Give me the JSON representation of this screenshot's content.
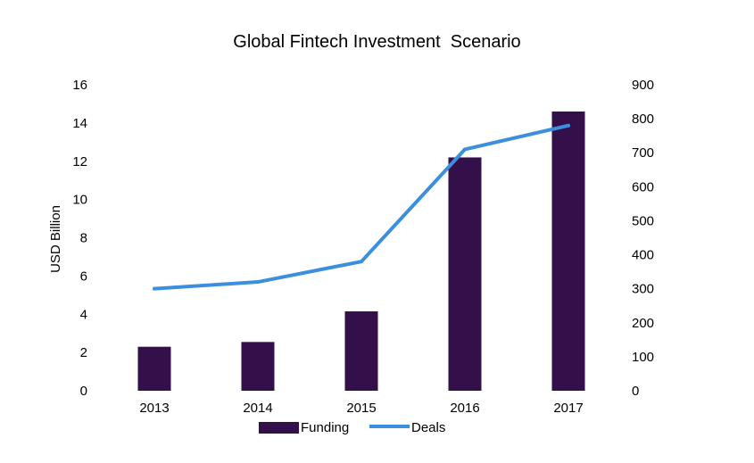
{
  "chart_data": {
    "type": "bar",
    "title": "Global Fintech Investment  Scenario",
    "categories": [
      "2013",
      "2014",
      "2015",
      "2016",
      "2017"
    ],
    "series": [
      {
        "name": "Funding",
        "kind": "bar",
        "axis": "left",
        "color": "#33104a",
        "values": [
          2.3,
          2.55,
          4.15,
          12.2,
          14.6
        ]
      },
      {
        "name": "Deals",
        "kind": "line",
        "axis": "right",
        "color": "#3b8fdc",
        "values": [
          300,
          320,
          380,
          710,
          780
        ]
      }
    ],
    "ylabel": "USD Billion",
    "ylim": [
      0,
      16
    ],
    "yticks": [
      "0",
      "2",
      "4",
      "6",
      "8",
      "10",
      "12",
      "14",
      "16"
    ],
    "y2lim": [
      0,
      900
    ],
    "y2ticks": [
      "0",
      "100",
      "200",
      "300",
      "400",
      "500",
      "600",
      "700",
      "800",
      "900"
    ],
    "grid": false,
    "legend_position": "bottom"
  }
}
